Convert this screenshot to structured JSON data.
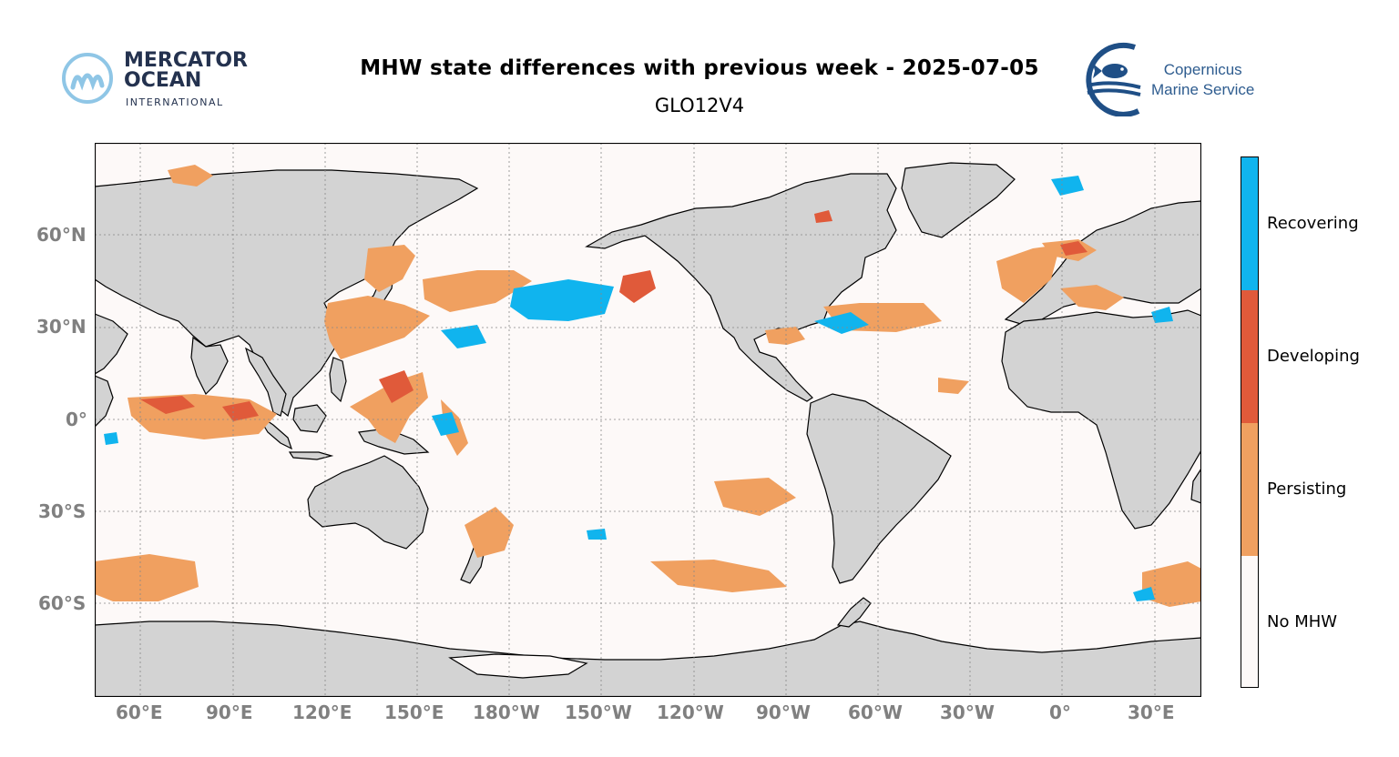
{
  "title": "MHW state differences with previous week - 2025-07-05",
  "subtitle": "GLO12V4",
  "logos": {
    "mercator": {
      "line1": "MERCATOR",
      "line2": "OCEAN",
      "line3": "INTERNATIONAL"
    },
    "copernicus": {
      "line1": "Copernicus",
      "line2": "Marine Service"
    }
  },
  "map": {
    "projection": "Plate Carrée, central longitude 180°",
    "x_ticks": [
      "60°E",
      "90°E",
      "120°E",
      "150°E",
      "180°W",
      "150°W",
      "120°W",
      "90°W",
      "60°W",
      "30°W",
      "0°",
      "30°E"
    ],
    "y_ticks": [
      "60°N",
      "30°N",
      "0°",
      "30°S",
      "60°S"
    ],
    "land_color": "#d3d3d3",
    "ocean_color": "#fdf9f8"
  },
  "legend": {
    "categories": [
      {
        "label": "Recovering",
        "color": "#10b4ee"
      },
      {
        "label": "Developing",
        "color": "#e05a3a"
      },
      {
        "label": "Persisting",
        "color": "#f0a060"
      },
      {
        "label": "No MHW",
        "color": "#fdf9f8"
      }
    ]
  }
}
